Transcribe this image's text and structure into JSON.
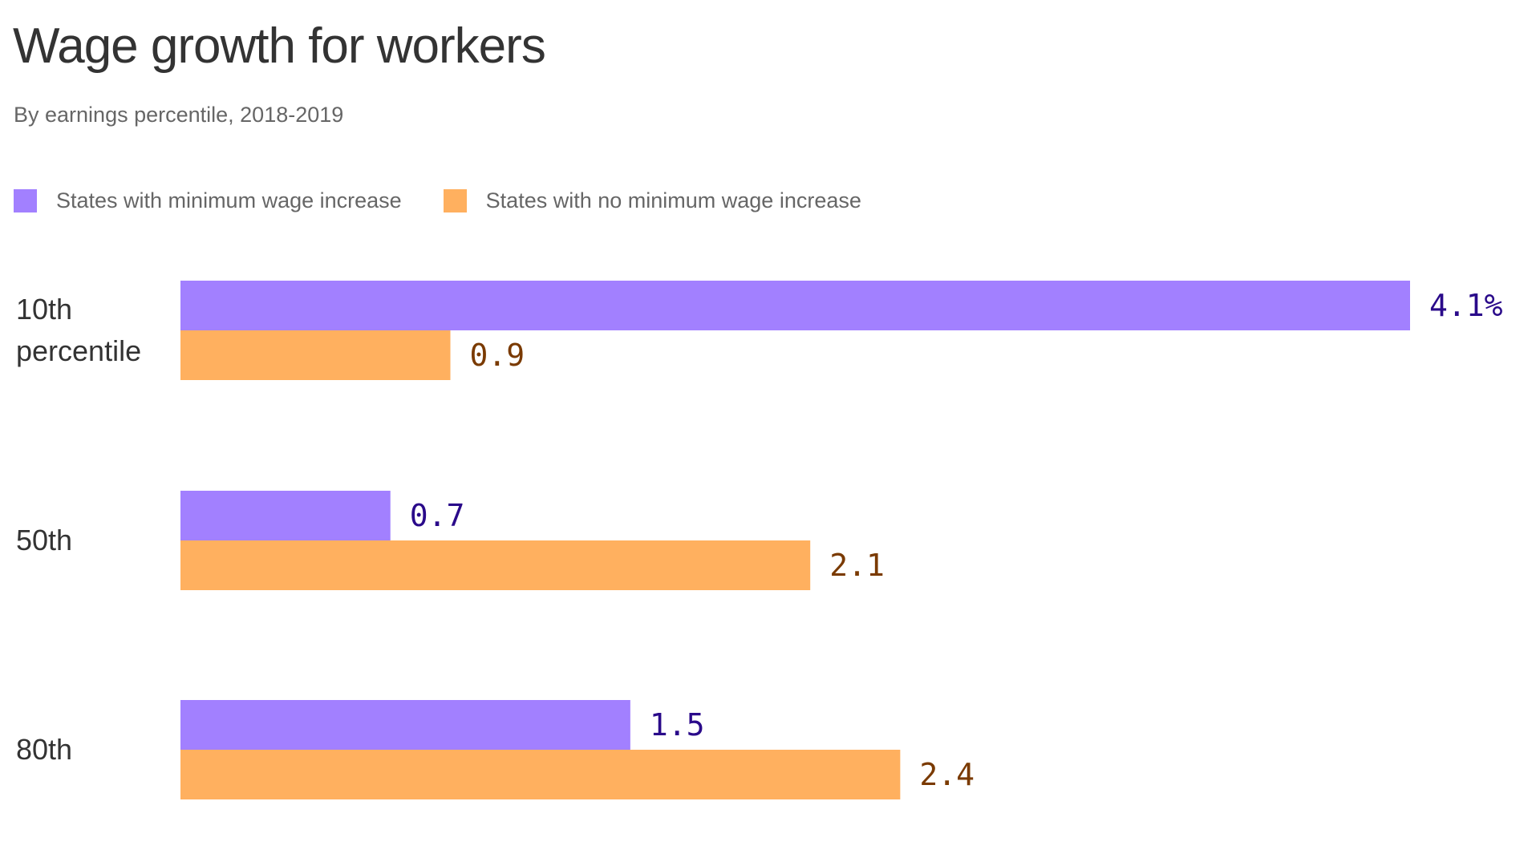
{
  "colors": {
    "series_a": "#a280ff",
    "series_b": "#ffb05f",
    "label_a": "#2a0a8a",
    "label_b": "#7a3a00"
  },
  "chart_data": {
    "type": "bar",
    "orientation": "horizontal",
    "title": "Wage growth for workers",
    "subtitle": "By earnings percentile, 2018-2019",
    "categories": [
      [
        "10th",
        "percentile"
      ],
      [
        "50th"
      ],
      [
        "80th"
      ]
    ],
    "series": [
      {
        "name": "States with minimum wage increase",
        "values": [
          4.1,
          0.7,
          1.5
        ],
        "labels": [
          "4.1%",
          "0.7",
          "1.5"
        ]
      },
      {
        "name": "States with no minimum wage increase",
        "values": [
          0.9,
          2.1,
          2.4
        ],
        "labels": [
          "0.9",
          "2.1",
          "2.4"
        ]
      }
    ],
    "xlim": [
      0,
      4.1
    ],
    "grid": false,
    "legend_position": "top-left"
  }
}
